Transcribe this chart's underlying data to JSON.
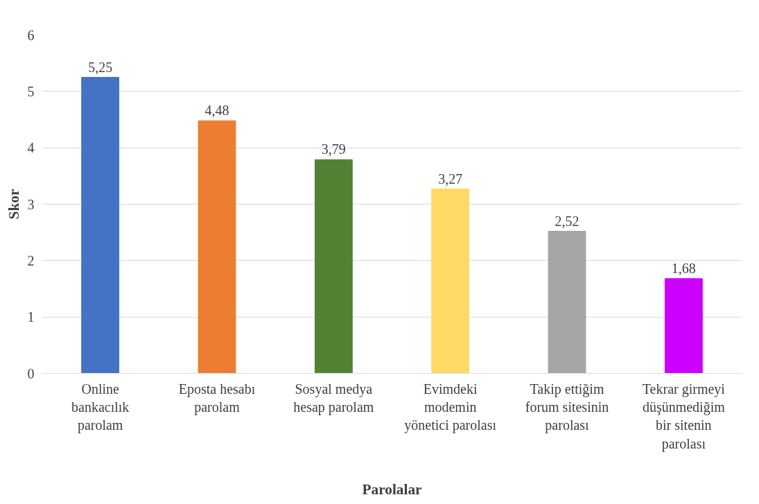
{
  "chart_data": {
    "type": "bar",
    "xlabel": "Parolalar",
    "ylabel": "Skor",
    "categories": [
      "Online\nbankacılık\nparolam",
      "Eposta hesabı\nparolam",
      "Sosyal medya\nhesap parolam",
      "Evimdeki\nmodemin\nyönetici parolası",
      "Takip ettiğim\nforum sitesinin\nparolası",
      "Tekrar girmeyi\ndüşünmediğim\nbir sitenin\nparolası"
    ],
    "values": [
      5.25,
      4.48,
      3.79,
      3.27,
      2.52,
      1.68
    ],
    "value_labels": [
      "5,25",
      "4,48",
      "3,79",
      "3,27",
      "2,52",
      "1,68"
    ],
    "colors": [
      "#4472c4",
      "#ed7d31",
      "#548235",
      "#ffd966",
      "#a5a5a5",
      "#cc00ff"
    ],
    "ylim": [
      0,
      6
    ],
    "yticks": [
      0,
      1,
      2,
      3,
      4,
      5,
      6
    ],
    "grid": "y"
  }
}
